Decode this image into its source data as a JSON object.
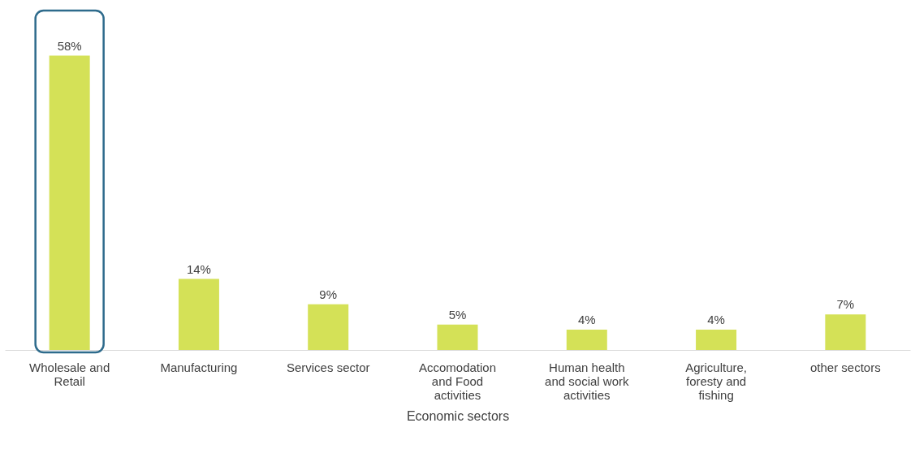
{
  "chart_data": {
    "type": "bar",
    "xlabel": "Economic sectors",
    "categories": [
      "Wholesale and Retail",
      "Manufacturing",
      "Services sector",
      "Accomodation and Food activities",
      "Human health and social work activities",
      "Agriculture, foresty and fishing",
      "other sectors"
    ],
    "values": [
      58,
      14,
      9,
      5,
      4,
      4,
      7
    ],
    "value_labels": [
      "58%",
      "14%",
      "9%",
      "5%",
      "4%",
      "4%",
      "7%"
    ],
    "color": "#d4e157",
    "grid": false
  }
}
